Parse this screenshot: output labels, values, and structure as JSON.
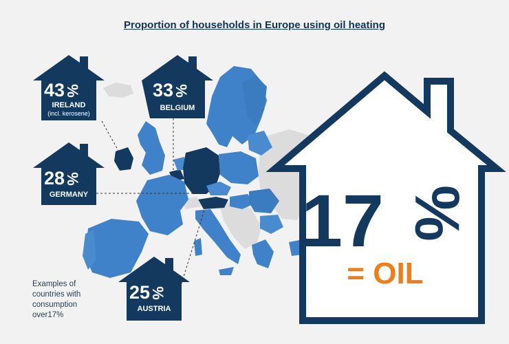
{
  "title": "Proportion of households in Europe using oil heating",
  "headline": {
    "value": "17",
    "unit": "%",
    "caption": "= OIL"
  },
  "callouts": [
    {
      "value": "43",
      "unit": "%",
      "country": "IRELAND",
      "note": "(incl. kerosene)"
    },
    {
      "value": "33",
      "unit": "%",
      "country": "BELGIUM",
      "note": ""
    },
    {
      "value": "28",
      "unit": "%",
      "country": "GERMANY",
      "note": ""
    },
    {
      "value": "25",
      "unit": "%",
      "country": "AUSTRIA",
      "note": ""
    }
  ],
  "footnote": {
    "lines": [
      "Examples of",
      "countries with",
      "consumption",
      "over17%"
    ]
  },
  "colors": {
    "navy": "#133a5e",
    "map_blue": "#3f82c9",
    "map_light": "#dcdcdc",
    "orange": "#ef7d1a",
    "background": "#f2f2f2"
  }
}
